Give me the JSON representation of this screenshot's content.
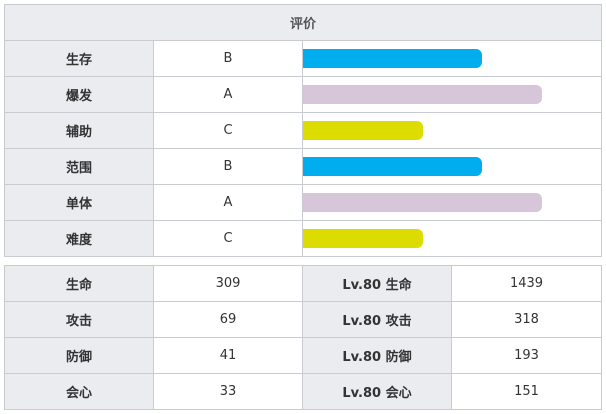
{
  "rating": {
    "header": "评价",
    "rows": [
      {
        "label": "生存",
        "grade": "B",
        "level": 0.6,
        "color": "#00aeef"
      },
      {
        "label": "爆发",
        "grade": "A",
        "level": 0.8,
        "color": "#d7c6d9"
      },
      {
        "label": "辅助",
        "grade": "C",
        "level": 0.4,
        "color": "#dcdc00"
      },
      {
        "label": "范围",
        "grade": "B",
        "level": 0.6,
        "color": "#00aeef"
      },
      {
        "label": "单体",
        "grade": "A",
        "level": 0.8,
        "color": "#d7c6d9"
      },
      {
        "label": "难度",
        "grade": "C",
        "level": 0.4,
        "color": "#dcdc00"
      }
    ]
  },
  "stats": {
    "rows": [
      {
        "label": "生命",
        "value": "309",
        "lv_label": "Lv.80 生命",
        "lv_value": "1439"
      },
      {
        "label": "攻击",
        "value": "69",
        "lv_label": "Lv.80 攻击",
        "lv_value": "318"
      },
      {
        "label": "防御",
        "value": "41",
        "lv_label": "Lv.80 防御",
        "lv_value": "193"
      },
      {
        "label": "会心",
        "value": "33",
        "lv_label": "Lv.80 会心",
        "lv_value": "151"
      }
    ]
  }
}
